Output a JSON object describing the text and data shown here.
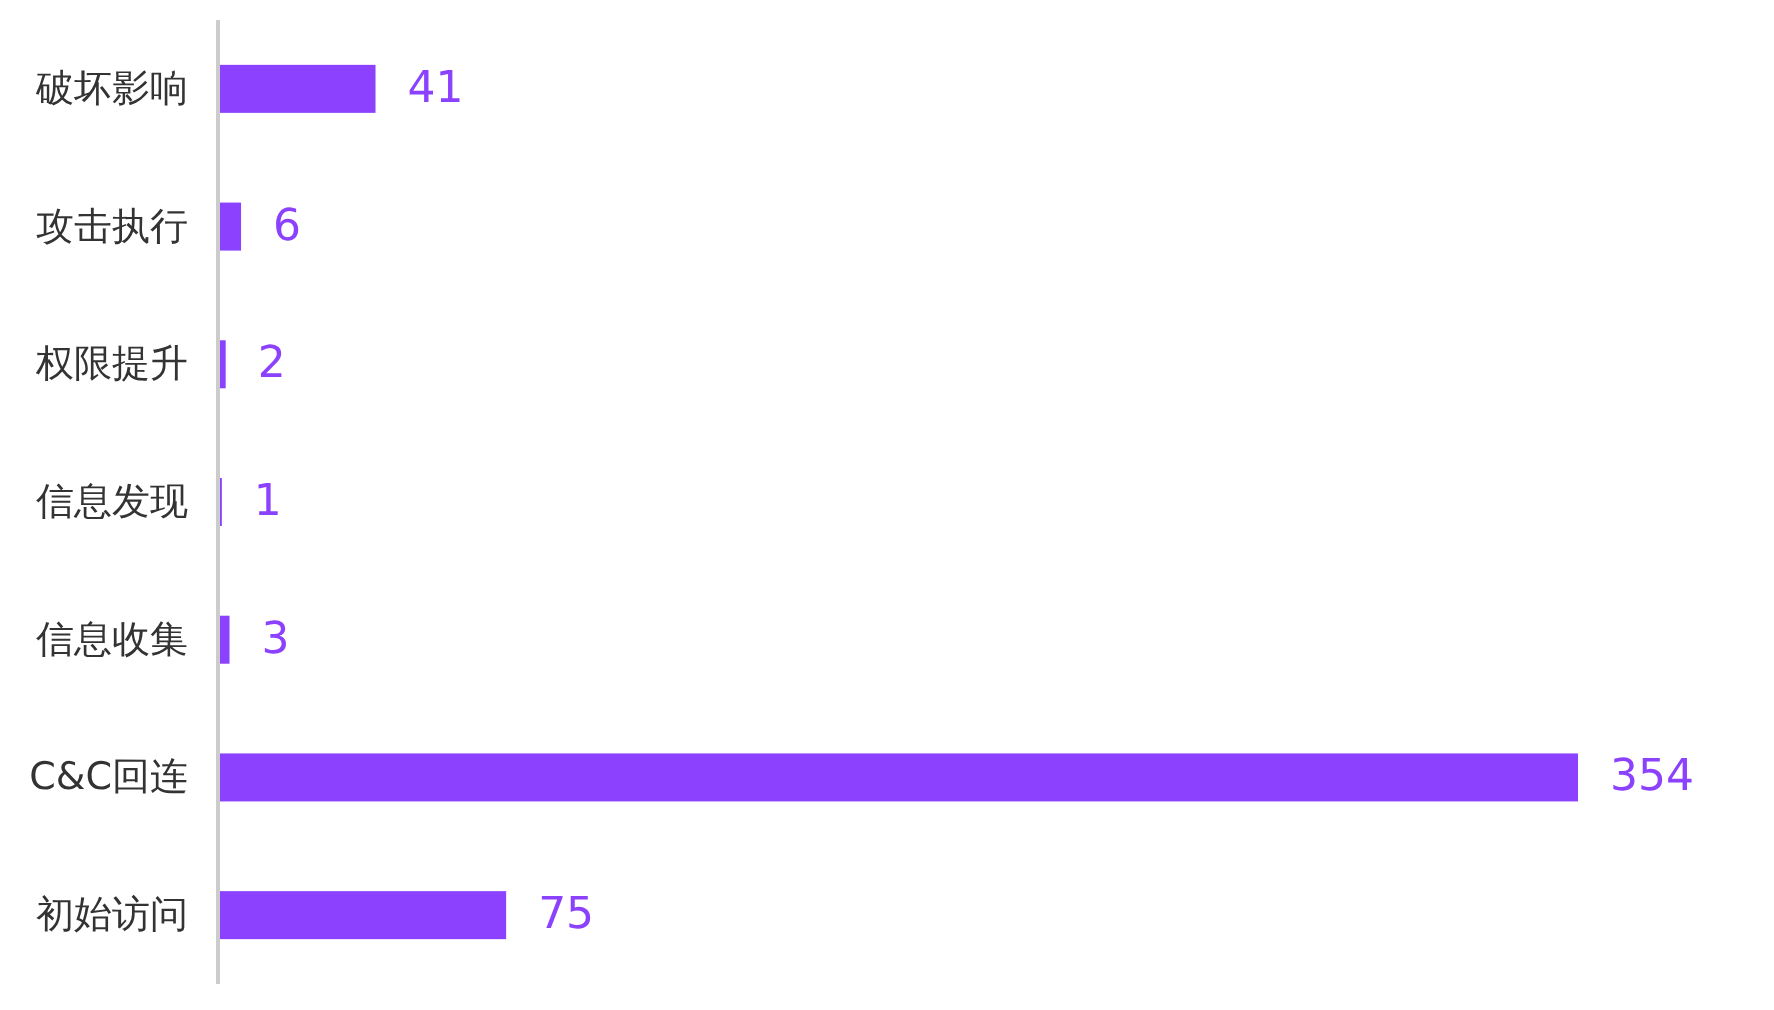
{
  "chart_data": {
    "type": "bar",
    "orientation": "horizontal",
    "categories": [
      "破坏影响",
      "攻击执行",
      "权限提升",
      "信息发现",
      "信息收集",
      "C&C回连",
      "初始访问"
    ],
    "values": [
      41,
      6,
      2,
      1,
      3,
      354,
      75
    ],
    "color": "#8b41fd",
    "data_labels": true
  }
}
